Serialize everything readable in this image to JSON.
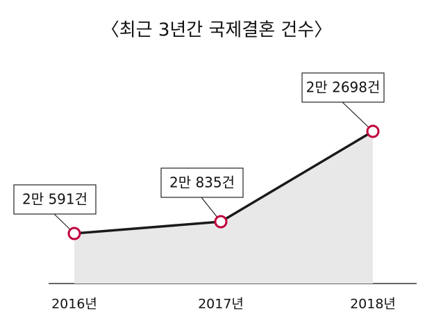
{
  "chart_data": {
    "type": "area-line",
    "title": "〈최근 3년간 국제결혼 건수〉",
    "categories": [
      "2016년",
      "2017년",
      "2018년"
    ],
    "values": [
      20591,
      20835,
      22698
    ],
    "value_labels": [
      "2만 591건",
      "2만 835건",
      "2만 2698건"
    ],
    "color": "#1a1a1a",
    "fill": "#e8e8e8",
    "marker_color": "#c0003c"
  }
}
